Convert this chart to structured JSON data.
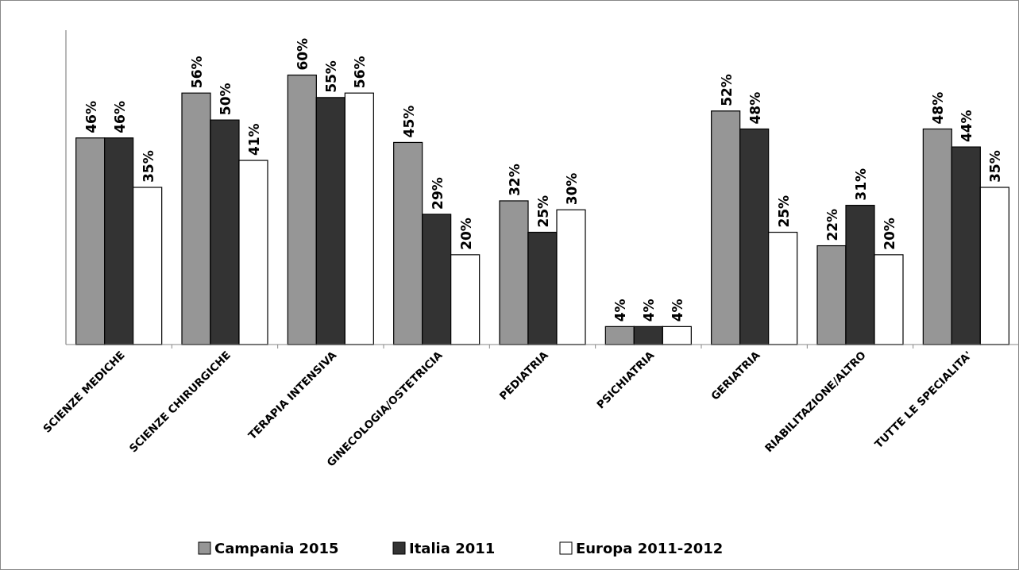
{
  "chart_data": {
    "type": "bar",
    "categories": [
      "SCIENZE MEDICHE",
      "SCIENZE CHIRURGICHE",
      "TERAPIA INTENSIVA",
      "GINECOLOGIA/OSTETRICIA",
      "PEDIATRIA",
      "PSICHIATRIA",
      "GERIATRIA",
      "RIABILITAZIONE/ALTRO",
      "TUTTE LE SPECIALITA'"
    ],
    "series": [
      {
        "name": "Campania 2015",
        "color": "#969696",
        "values": [
          46,
          56,
          60,
          45,
          32,
          4,
          52,
          22,
          48
        ],
        "value_labels": [
          "46%",
          "56%",
          "60%",
          "45%",
          "32%",
          "4%",
          "52%",
          "22%",
          "48%"
        ]
      },
      {
        "name": "Italia 2011",
        "color": "#333333",
        "values": [
          46,
          50,
          55,
          29,
          25,
          4,
          48,
          31,
          44
        ],
        "value_labels": [
          "46%",
          "50%",
          "55%",
          "29%",
          "25%",
          "4%",
          "48%",
          "31%",
          "44%"
        ]
      },
      {
        "name": "Europa 2011-2012",
        "color": "#ffffff",
        "values": [
          35,
          41,
          56,
          20,
          30,
          4,
          25,
          20,
          35
        ],
        "value_labels": [
          "35%",
          "41%",
          "56%",
          "20%",
          "30%",
          "4%",
          "25%",
          "20%",
          "35%"
        ]
      }
    ],
    "tick_labels": "x",
    "legend": "bottom"
  }
}
